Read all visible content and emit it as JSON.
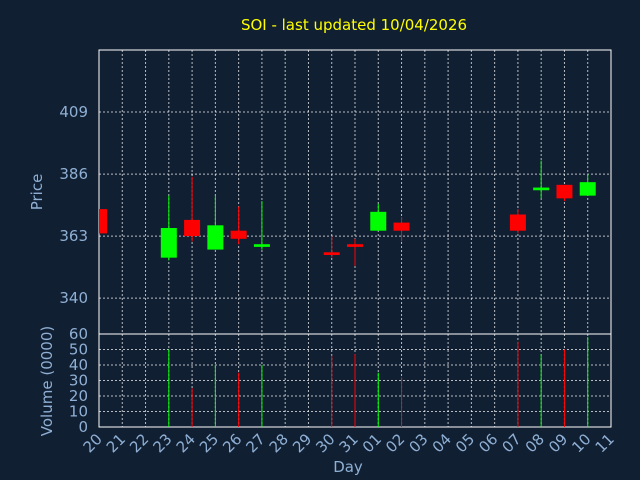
{
  "chart_data": {
    "type": "candlestick",
    "title": "SOI - last updated 10/04/2026",
    "xlabel": "Day",
    "x_tick_labels": [
      "20",
      "21",
      "22",
      "23",
      "24",
      "25",
      "26",
      "27",
      "28",
      "29",
      "30",
      "31",
      "01",
      "02",
      "03",
      "04",
      "05",
      "06",
      "07",
      "08",
      "09",
      "10",
      "11"
    ],
    "grid": true,
    "colors": {
      "background": "#111f33",
      "up": "#00ff00",
      "down": "#ff0000",
      "grid": "#ffffff",
      "text": "#8fb0d4",
      "title": "#ffff00"
    },
    "price": {
      "ylabel": "Price",
      "ylim": [
        326.7,
        432
      ],
      "ticks": [
        340,
        363,
        386,
        409
      ],
      "candles": [
        {
          "day": "20",
          "open": 373,
          "high": 373,
          "low": 364,
          "close": 364
        },
        {
          "day": "23",
          "open": 355,
          "high": 378,
          "low": 354,
          "close": 366
        },
        {
          "day": "24",
          "open": 369,
          "high": 385,
          "low": 361,
          "close": 363
        },
        {
          "day": "25",
          "open": 358,
          "high": 378,
          "low": 358,
          "close": 367
        },
        {
          "day": "26",
          "open": 365,
          "high": 374,
          "low": 360,
          "close": 362
        },
        {
          "day": "27",
          "open": 359,
          "high": 376,
          "low": 358,
          "close": 360
        },
        {
          "day": "30",
          "open": 357,
          "high": 363,
          "low": 355,
          "close": 356
        },
        {
          "day": "31",
          "open": 360,
          "high": 362,
          "low": 352,
          "close": 359
        },
        {
          "day": "01",
          "open": 365,
          "high": 375,
          "low": 365,
          "close": 372
        },
        {
          "day": "02",
          "open": 368,
          "high": 370,
          "low": 361,
          "close": 365
        },
        {
          "day": "07",
          "open": 371,
          "high": 373,
          "low": 364,
          "close": 365
        },
        {
          "day": "08",
          "open": 380,
          "high": 391,
          "low": 377,
          "close": 381
        },
        {
          "day": "09",
          "open": 382,
          "high": 382,
          "low": 376,
          "close": 377
        },
        {
          "day": "10",
          "open": 378,
          "high": 386,
          "low": 378,
          "close": 383
        }
      ]
    },
    "volume": {
      "ylabel": "Volume (0000)",
      "ylim": [
        0,
        60
      ],
      "ticks": [
        0,
        10,
        20,
        30,
        40,
        50,
        60
      ],
      "bars": [
        {
          "day": "23",
          "value": 50,
          "direction": "up"
        },
        {
          "day": "24",
          "value": 25,
          "direction": "down"
        },
        {
          "day": "25",
          "value": 40,
          "direction": "up"
        },
        {
          "day": "26",
          "value": 35,
          "direction": "down"
        },
        {
          "day": "27",
          "value": 40,
          "direction": "up"
        },
        {
          "day": "30",
          "value": 46,
          "direction": "down"
        },
        {
          "day": "31",
          "value": 47,
          "direction": "down"
        },
        {
          "day": "01",
          "value": 35,
          "direction": "up"
        },
        {
          "day": "02",
          "value": 32,
          "direction": "down"
        },
        {
          "day": "07",
          "value": 55,
          "direction": "down"
        },
        {
          "day": "08",
          "value": 47,
          "direction": "up"
        },
        {
          "day": "09",
          "value": 50,
          "direction": "down"
        },
        {
          "day": "10",
          "value": 58,
          "direction": "up"
        }
      ]
    }
  }
}
